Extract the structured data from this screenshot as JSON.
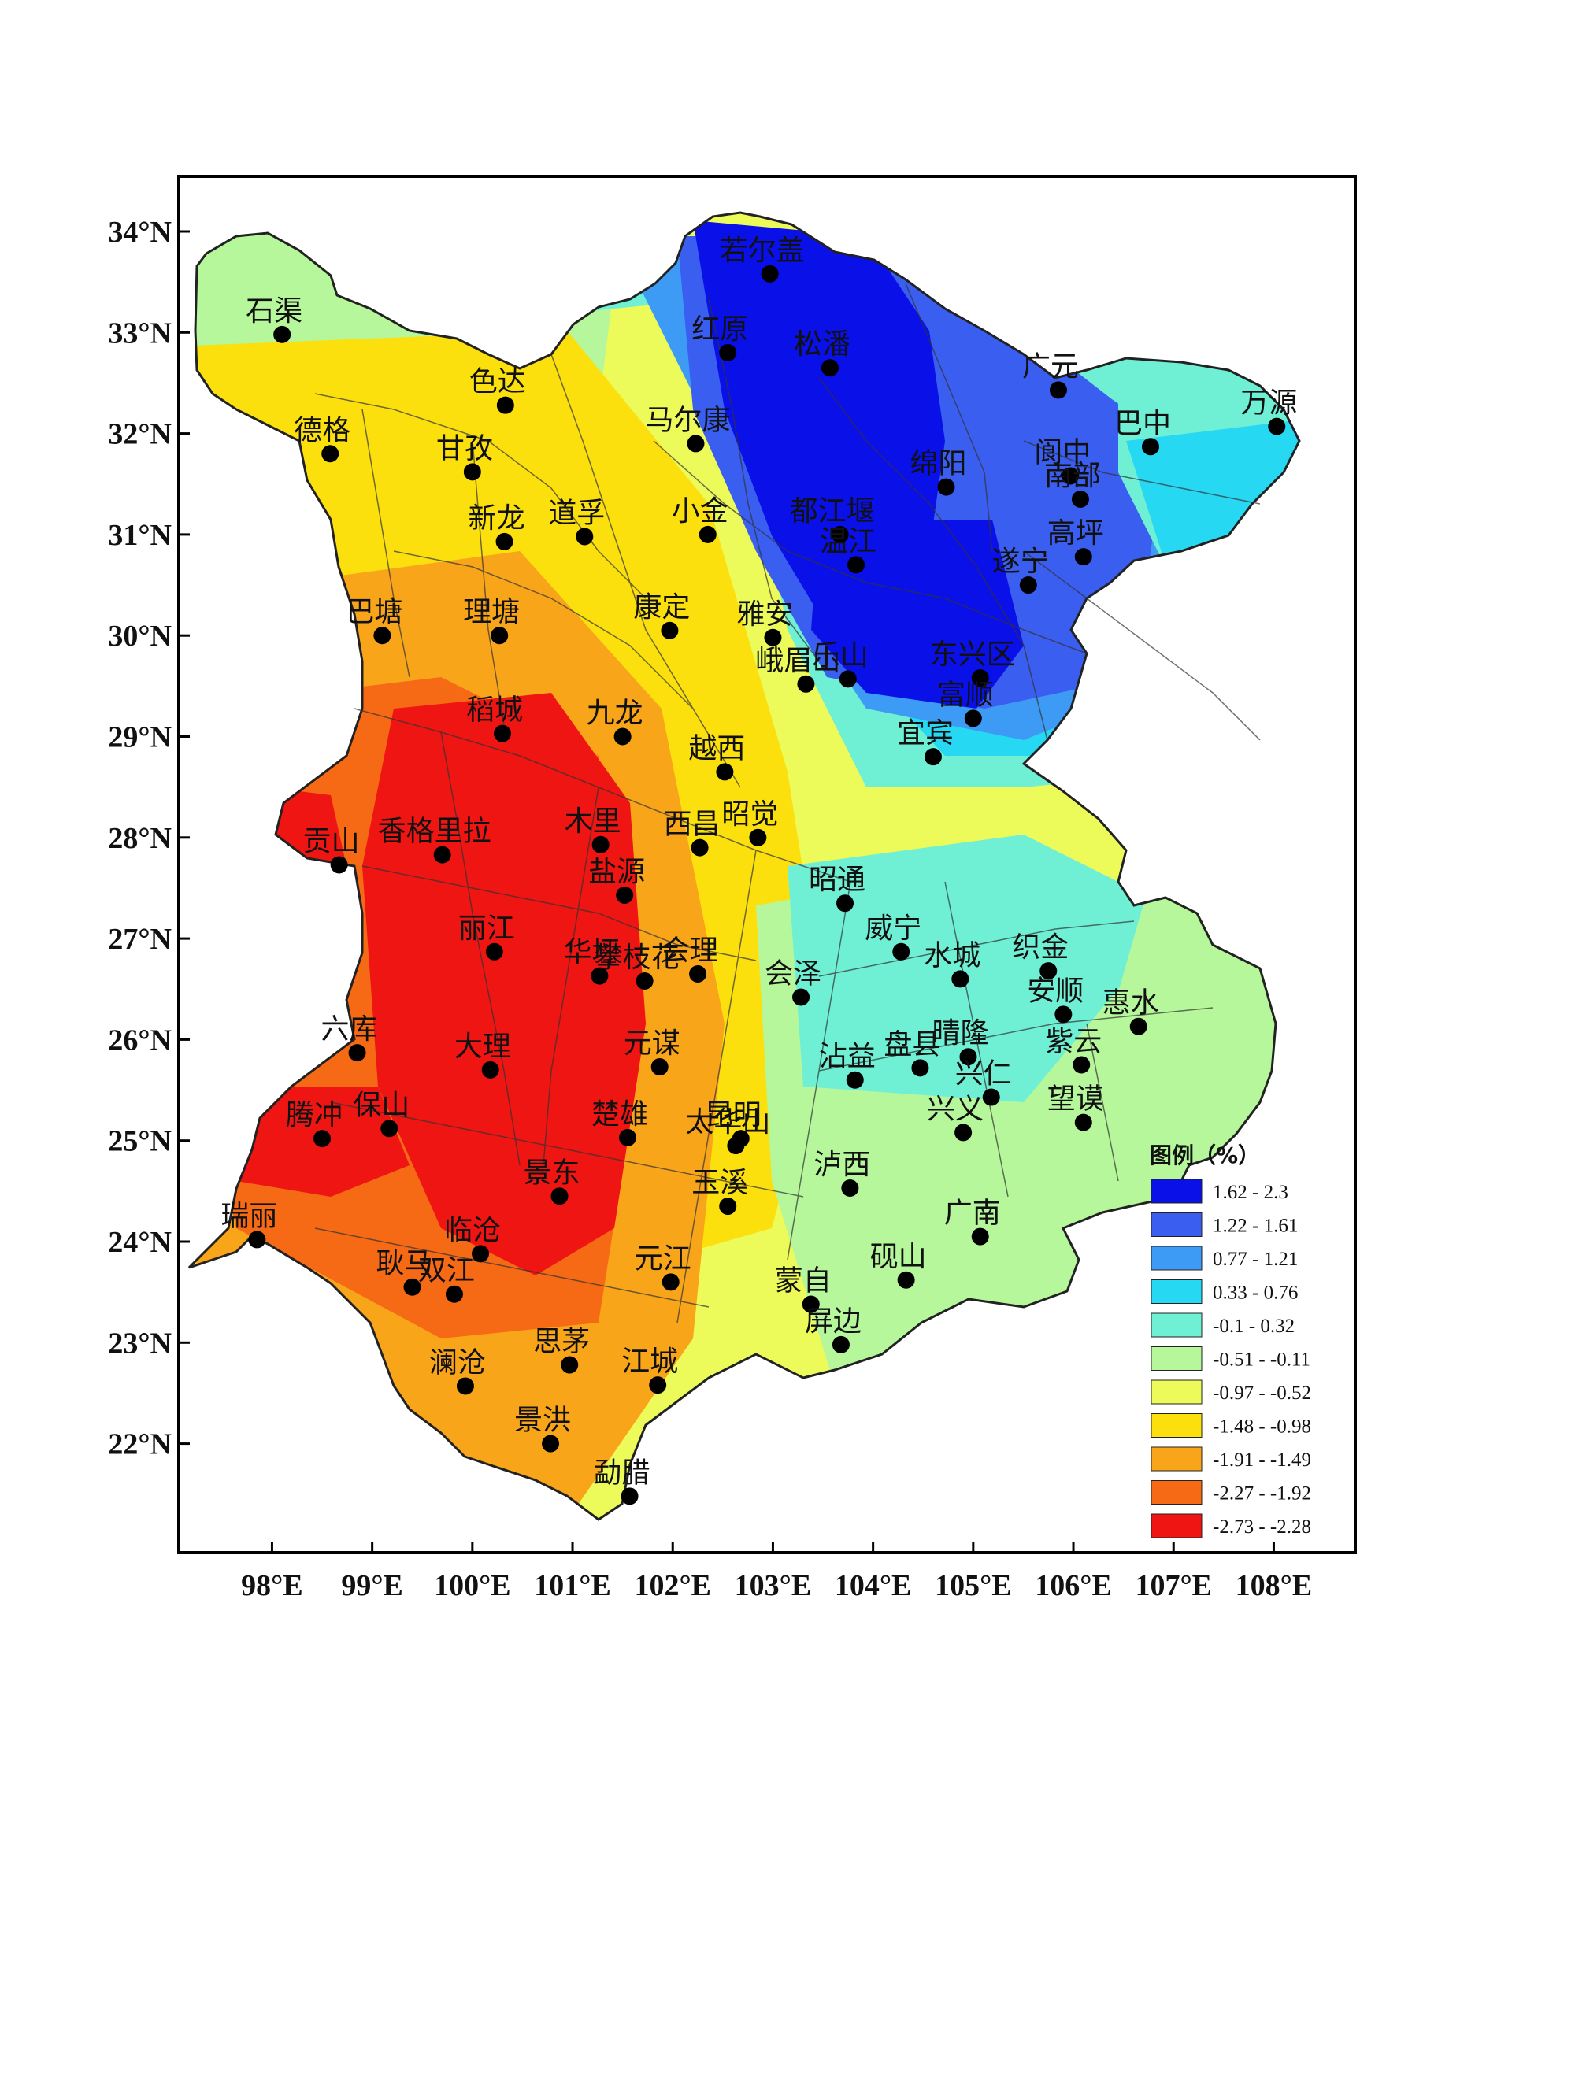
{
  "map": {
    "x_ticks": [
      "98°E",
      "99°E",
      "100°E",
      "101°E",
      "102°E",
      "103°E",
      "104°E",
      "105°E",
      "106°E",
      "107°E",
      "108°E"
    ],
    "y_ticks": [
      "34°N",
      "33°N",
      "32°N",
      "31°N",
      "30°N",
      "29°N",
      "28°N",
      "27°N",
      "26°N",
      "25°N",
      "24°N",
      "23°N",
      "22°N"
    ]
  },
  "legend": {
    "title": "图例（%）",
    "classes": [
      {
        "label": "1.62 - 2.3",
        "color": "#0a10e8"
      },
      {
        "label": "1.22 - 1.61",
        "color": "#3a5ef0"
      },
      {
        "label": "0.77 - 1.21",
        "color": "#3d9bf5"
      },
      {
        "label": "0.33 - 0.76",
        "color": "#26d8f2"
      },
      {
        "label": "-0.1 - 0.32",
        "color": "#6ff0d4"
      },
      {
        "label": "-0.51 - -0.11",
        "color": "#b5f79a"
      },
      {
        "label": "-0.97 - -0.52",
        "color": "#ecfa5a"
      },
      {
        "label": "-1.48 - -0.98",
        "color": "#fbe00e"
      },
      {
        "label": "-1.91 - -1.49",
        "color": "#f9a51a"
      },
      {
        "label": "-2.27 - -1.92",
        "color": "#f66a16"
      },
      {
        "label": "-2.73 - -2.28",
        "color": "#ee1512"
      }
    ]
  },
  "stations": [
    {
      "name": "若尔盖",
      "lon": 102.97,
      "lat": 33.58
    },
    {
      "name": "红原",
      "lon": 102.55,
      "lat": 32.8
    },
    {
      "name": "松潘",
      "lon": 103.57,
      "lat": 32.65
    },
    {
      "name": "石渠",
      "lon": 98.1,
      "lat": 32.98
    },
    {
      "name": "色达",
      "lon": 100.33,
      "lat": 32.28
    },
    {
      "name": "德格",
      "lon": 98.58,
      "lat": 31.8
    },
    {
      "name": "甘孜",
      "lon": 100.0,
      "lat": 31.62
    },
    {
      "name": "马尔康",
      "lon": 102.23,
      "lat": 31.9
    },
    {
      "name": "绵阳",
      "lon": 104.73,
      "lat": 31.47
    },
    {
      "name": "广元",
      "lon": 105.85,
      "lat": 32.43
    },
    {
      "name": "阆中",
      "lon": 105.97,
      "lat": 31.58
    },
    {
      "name": "巴中",
      "lon": 106.77,
      "lat": 31.87
    },
    {
      "name": "南部",
      "lon": 106.07,
      "lat": 31.35
    },
    {
      "name": "万源",
      "lon": 108.03,
      "lat": 32.07
    },
    {
      "name": "新龙",
      "lon": 100.32,
      "lat": 30.93
    },
    {
      "name": "道孚",
      "lon": 101.12,
      "lat": 30.98
    },
    {
      "name": "小金",
      "lon": 102.35,
      "lat": 31.0
    },
    {
      "name": "都江堰",
      "lon": 103.67,
      "lat": 31.0
    },
    {
      "name": "温江",
      "lon": 103.83,
      "lat": 30.7
    },
    {
      "name": "遂宁",
      "lon": 105.55,
      "lat": 30.5
    },
    {
      "name": "高坪",
      "lon": 106.1,
      "lat": 30.78
    },
    {
      "name": "巴塘",
      "lon": 99.1,
      "lat": 30.0
    },
    {
      "name": "理塘",
      "lon": 100.27,
      "lat": 30.0
    },
    {
      "name": "康定",
      "lon": 101.97,
      "lat": 30.05
    },
    {
      "name": "雅安",
      "lon": 103.0,
      "lat": 29.98
    },
    {
      "name": "峨眉山",
      "lon": 103.33,
      "lat": 29.52
    },
    {
      "name": "乐山",
      "lon": 103.75,
      "lat": 29.57
    },
    {
      "name": "东兴区",
      "lon": 105.07,
      "lat": 29.58
    },
    {
      "name": "宜宾",
      "lon": 104.6,
      "lat": 28.8
    },
    {
      "name": "富顺",
      "lon": 105.0,
      "lat": 29.18
    },
    {
      "name": "稻城",
      "lon": 100.3,
      "lat": 29.03
    },
    {
      "name": "九龙",
      "lon": 101.5,
      "lat": 29.0
    },
    {
      "name": "越西",
      "lon": 102.52,
      "lat": 28.65
    },
    {
      "name": "香格里拉",
      "lon": 99.7,
      "lat": 27.83
    },
    {
      "name": "木里",
      "lon": 101.28,
      "lat": 27.93
    },
    {
      "name": "西昌",
      "lon": 102.27,
      "lat": 27.9
    },
    {
      "name": "昭觉",
      "lon": 102.85,
      "lat": 28.0
    },
    {
      "name": "盐源",
      "lon": 101.52,
      "lat": 27.43
    },
    {
      "name": "昭通",
      "lon": 103.72,
      "lat": 27.35
    },
    {
      "name": "威宁",
      "lon": 104.28,
      "lat": 26.87
    },
    {
      "name": "丽江",
      "lon": 100.22,
      "lat": 26.87
    },
    {
      "name": "华坪",
      "lon": 101.27,
      "lat": 26.63
    },
    {
      "name": "会理",
      "lon": 102.25,
      "lat": 26.65
    },
    {
      "name": "攀枝花",
      "lon": 101.72,
      "lat": 26.58
    },
    {
      "name": "会泽",
      "lon": 103.28,
      "lat": 26.42
    },
    {
      "name": "水城",
      "lon": 104.87,
      "lat": 26.6
    },
    {
      "name": "织金",
      "lon": 105.75,
      "lat": 26.68
    },
    {
      "name": "安顺",
      "lon": 105.9,
      "lat": 26.25
    },
    {
      "name": "惠水",
      "lon": 106.65,
      "lat": 26.13
    },
    {
      "name": "贡山",
      "lon": 98.67,
      "lat": 27.73
    },
    {
      "name": "六库",
      "lon": 98.85,
      "lat": 25.87
    },
    {
      "name": "大理",
      "lon": 100.18,
      "lat": 25.7
    },
    {
      "name": "元谋",
      "lon": 101.87,
      "lat": 25.73
    },
    {
      "name": "沾益",
      "lon": 103.82,
      "lat": 25.6
    },
    {
      "name": "盘县",
      "lon": 104.47,
      "lat": 25.72
    },
    {
      "name": "晴隆",
      "lon": 104.95,
      "lat": 25.83
    },
    {
      "name": "兴仁",
      "lon": 105.18,
      "lat": 25.43
    },
    {
      "name": "紫云",
      "lon": 106.08,
      "lat": 25.75
    },
    {
      "name": "望谟",
      "lon": 106.1,
      "lat": 25.18
    },
    {
      "name": "兴义",
      "lon": 104.9,
      "lat": 25.08
    },
    {
      "name": "保山",
      "lon": 99.17,
      "lat": 25.12
    },
    {
      "name": "腾冲",
      "lon": 98.5,
      "lat": 25.02
    },
    {
      "name": "楚雄",
      "lon": 101.55,
      "lat": 25.03
    },
    {
      "name": "昆明",
      "lon": 102.68,
      "lat": 25.02
    },
    {
      "name": "太华山",
      "lon": 102.63,
      "lat": 24.95
    },
    {
      "name": "玉溪",
      "lon": 102.55,
      "lat": 24.35
    },
    {
      "name": "泸西",
      "lon": 103.77,
      "lat": 24.53
    },
    {
      "name": "景东",
      "lon": 100.87,
      "lat": 24.45
    },
    {
      "name": "广南",
      "lon": 105.07,
      "lat": 24.05
    },
    {
      "name": "瑞丽",
      "lon": 97.85,
      "lat": 24.02
    },
    {
      "name": "临沧",
      "lon": 100.08,
      "lat": 23.88
    },
    {
      "name": "耿马",
      "lon": 99.4,
      "lat": 23.55
    },
    {
      "name": "双江",
      "lon": 99.82,
      "lat": 23.48
    },
    {
      "name": "元江",
      "lon": 101.98,
      "lat": 23.6
    },
    {
      "name": "蒙自",
      "lon": 103.38,
      "lat": 23.38
    },
    {
      "name": "屏边",
      "lon": 103.68,
      "lat": 22.98
    },
    {
      "name": "砚山",
      "lon": 104.33,
      "lat": 23.62
    },
    {
      "name": "思茅",
      "lon": 100.97,
      "lat": 22.78
    },
    {
      "name": "江城",
      "lon": 101.85,
      "lat": 22.58
    },
    {
      "name": "澜沧",
      "lon": 99.93,
      "lat": 22.57
    },
    {
      "name": "景洪",
      "lon": 100.78,
      "lat": 22.0
    },
    {
      "name": "勐腊",
      "lon": 101.57,
      "lat": 21.48
    }
  ]
}
